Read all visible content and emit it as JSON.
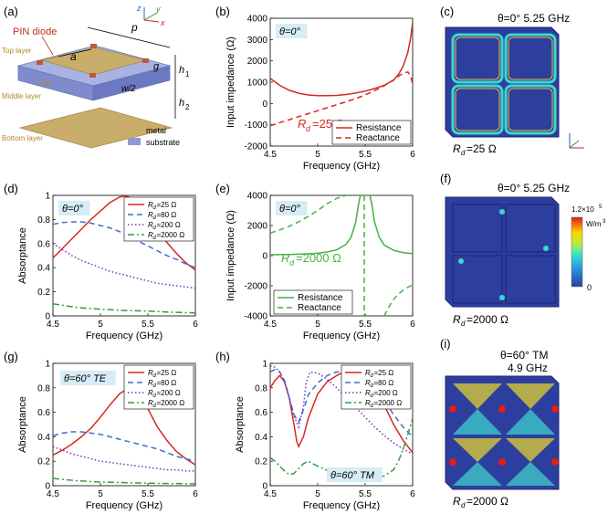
{
  "panels": {
    "a": {
      "label": "(a)",
      "texts": {
        "diode": "PIN diode",
        "top": "Top layer",
        "middle": "Middle layer",
        "bottom": "Bottom layer",
        "via": "Via",
        "p": "p",
        "a": "a",
        "g": "g",
        "h1": "h",
        "h1sub": "1",
        "h2": "h",
        "h2sub": "2",
        "w2": "w/2",
        "metal": "metal",
        "substrate": "substrate",
        "z": "z",
        "y": "y",
        "x": "x"
      }
    },
    "c": {
      "label": "(c)",
      "header": "θ=0° 5.25 GHz",
      "rd_label": "R",
      "rd_value": "=25 Ω"
    },
    "f": {
      "label": "(f)",
      "header": "θ=0° 5.25 GHz",
      "rd_label": "R",
      "rd_value": "=2000 Ω",
      "colorbar": {
        "max": "1.2×10",
        "max_exp": "5",
        "unit": "W/m",
        "unit_exp": "3",
        "min": "0"
      }
    },
    "i": {
      "label": "(i)",
      "header1": "θ=60° TM",
      "header2": "4.9 GHz",
      "rd_label": "R",
      "rd_value": "=2000 Ω"
    }
  },
  "colors": {
    "red": "#d62a1f",
    "blue": "#3a6fd1",
    "purple": "#7b2fb5",
    "green": "#2e9e3c",
    "green_e": "#44b144",
    "metal": "#c9ad6a",
    "substrate": "#8f9ad3",
    "tag_bg": "#d6ecf7",
    "field_bg": "#2c3f9e"
  },
  "chart_data": [
    {
      "id": "b",
      "label": "(b)",
      "type": "line",
      "title": "",
      "tag": "θ=0°",
      "annotation": "R",
      "annotation_sub": "d",
      "annotation_rest": "=25 Ω",
      "xlabel": "Frequency (GHz)",
      "ylabel": "Input impedance (Ω)",
      "xlim": [
        4.5,
        6
      ],
      "ylim": [
        -2000,
        4000
      ],
      "xticks": [
        "4.5",
        "5",
        "5.5",
        "6"
      ],
      "yticks": [
        "-2000",
        "-1000",
        "0",
        "1000",
        "2000",
        "3000",
        "4000"
      ],
      "legend": [
        "Resistance",
        "Reactance"
      ],
      "legend_position": "bottom-right",
      "series": [
        {
          "name": "Resistance",
          "style": "solid",
          "color": "red",
          "x": [
            4.5,
            4.6,
            4.7,
            4.8,
            4.9,
            5.0,
            5.1,
            5.2,
            5.3,
            5.4,
            5.5,
            5.6,
            5.7,
            5.8,
            5.85,
            5.9,
            5.95,
            5.98,
            6.0
          ],
          "y": [
            1180,
            850,
            620,
            480,
            400,
            370,
            365,
            380,
            420,
            490,
            580,
            700,
            850,
            1100,
            1350,
            1750,
            2400,
            3100,
            3800
          ]
        },
        {
          "name": "Reactance",
          "style": "dashed",
          "color": "red",
          "x": [
            4.5,
            4.6,
            4.7,
            4.8,
            4.9,
            5.0,
            5.1,
            5.2,
            5.3,
            5.4,
            5.5,
            5.6,
            5.7,
            5.8,
            5.85,
            5.9,
            5.95,
            5.98,
            6.0
          ],
          "y": [
            -1050,
            -900,
            -760,
            -620,
            -480,
            -340,
            -200,
            -60,
            80,
            230,
            400,
            600,
            830,
            1100,
            1280,
            1420,
            1480,
            1300,
            900
          ]
        }
      ]
    },
    {
      "id": "d",
      "label": "(d)",
      "type": "line",
      "title": "",
      "tag": "θ=0°",
      "xlabel": "Frequency (GHz)",
      "ylabel": "Absorptance",
      "xlim": [
        4.5,
        6
      ],
      "ylim": [
        0,
        1
      ],
      "xticks": [
        "4.5",
        "5",
        "5.5",
        "6"
      ],
      "yticks": [
        "0",
        "0.2",
        "0.4",
        "0.6",
        "0.8",
        "1"
      ],
      "legend": [
        "=25 Ω",
        "=80 Ω",
        "=200 Ω",
        "=2000 Ω"
      ],
      "legend_position": "top-right",
      "series": [
        {
          "name": "=25 Ω",
          "style": "solid",
          "color": "red",
          "x": [
            4.5,
            4.6,
            4.7,
            4.8,
            4.9,
            5.0,
            5.1,
            5.2,
            5.25,
            5.3,
            5.4,
            5.5,
            5.6,
            5.7,
            5.8,
            5.9,
            6.0
          ],
          "y": [
            0.48,
            0.56,
            0.64,
            0.72,
            0.8,
            0.87,
            0.94,
            0.985,
            0.995,
            0.985,
            0.93,
            0.83,
            0.72,
            0.61,
            0.52,
            0.44,
            0.38
          ]
        },
        {
          "name": "=80 Ω",
          "style": "dashed",
          "color": "blue",
          "x": [
            4.5,
            4.6,
            4.7,
            4.8,
            4.9,
            5.0,
            5.1,
            5.2,
            5.3,
            5.4,
            5.5,
            5.6,
            5.7,
            5.8,
            5.9,
            6.0
          ],
          "y": [
            0.76,
            0.775,
            0.78,
            0.78,
            0.77,
            0.75,
            0.73,
            0.7,
            0.66,
            0.62,
            0.58,
            0.54,
            0.5,
            0.47,
            0.43,
            0.4
          ]
        },
        {
          "name": "=200 Ω",
          "style": "dotted",
          "color": "purple",
          "x": [
            4.5,
            4.6,
            4.7,
            4.8,
            4.9,
            5.0,
            5.1,
            5.2,
            5.3,
            5.4,
            5.5,
            5.6,
            5.7,
            5.8,
            5.9,
            6.0
          ],
          "y": [
            0.6,
            0.55,
            0.5,
            0.46,
            0.43,
            0.4,
            0.37,
            0.35,
            0.33,
            0.31,
            0.29,
            0.27,
            0.26,
            0.25,
            0.24,
            0.23
          ]
        },
        {
          "name": "=2000 Ω",
          "style": "dashdot",
          "color": "green",
          "x": [
            4.5,
            4.75,
            5.0,
            5.25,
            5.5,
            5.75,
            6.0
          ],
          "y": [
            0.1,
            0.07,
            0.055,
            0.045,
            0.04,
            0.03,
            0.025
          ]
        }
      ]
    },
    {
      "id": "e",
      "label": "(e)",
      "type": "line",
      "title": "",
      "tag": "θ=0°",
      "annotation": "R",
      "annotation_sub": "d",
      "annotation_rest": "=2000 Ω",
      "xlabel": "Frequency (GHz)",
      "ylabel": "Input impedance (Ω)",
      "xlim": [
        4.5,
        6
      ],
      "ylim": [
        -4000,
        4000
      ],
      "xticks": [
        "4.5",
        "5",
        "5.5",
        "6"
      ],
      "yticks": [
        "-4000",
        "-2000",
        "0",
        "2000",
        "4000"
      ],
      "legend": [
        "Resistance",
        "Reactance"
      ],
      "legend_position": "bottom-left",
      "series": [
        {
          "name": "Resistance",
          "style": "solid",
          "color": "green_e",
          "x": [
            4.5,
            4.7,
            4.9,
            5.0,
            5.1,
            5.2,
            5.3,
            5.35,
            5.4,
            5.43,
            5.45,
            5.47,
            5.49,
            5.5,
            5.51,
            5.53,
            5.55,
            5.57,
            5.6,
            5.65,
            5.7,
            5.8,
            5.9,
            6.0
          ],
          "y": [
            60,
            80,
            120,
            160,
            240,
            380,
            750,
            1200,
            2200,
            3400,
            4000,
            4000,
            4000,
            4000,
            4000,
            4000,
            4000,
            3400,
            2200,
            1200,
            700,
            350,
            200,
            130
          ]
        },
        {
          "name": "Reactance",
          "style": "dashed",
          "color": "green_e",
          "segments": [
            {
              "x": [
                4.5,
                4.6,
                4.7,
                4.8,
                4.9,
                5.0,
                5.1,
                5.2,
                5.3,
                5.35,
                5.38
              ],
              "y": [
                1500,
                1700,
                1950,
                2250,
                2600,
                3000,
                3450,
                3800,
                4000,
                4000,
                4000
              ]
            },
            {
              "x": [
                5.49,
                5.49
              ],
              "y": [
                4000,
                -4000
              ]
            },
            {
              "x": [
                5.7,
                5.75,
                5.8,
                5.85,
                5.9,
                5.95,
                6.0
              ],
              "y": [
                -4000,
                -3400,
                -2900,
                -2550,
                -2300,
                -2100,
                -1950
              ]
            }
          ]
        }
      ]
    },
    {
      "id": "g",
      "label": "(g)",
      "type": "line",
      "title": "",
      "tag": "θ=60° TE",
      "xlabel": "Frequency (GHz)",
      "ylabel": "Absorptance",
      "xlim": [
        4.5,
        6
      ],
      "ylim": [
        0,
        1
      ],
      "xticks": [
        "4.5",
        "5",
        "5.5",
        "6"
      ],
      "yticks": [
        "0",
        "0.2",
        "0.4",
        "0.6",
        "0.8",
        "1"
      ],
      "legend": [
        "=25 Ω",
        "=80 Ω",
        "=200 Ω",
        "=2000 Ω"
      ],
      "legend_position": "top-right",
      "series": [
        {
          "name": "=25 Ω",
          "style": "solid",
          "color": "red",
          "x": [
            4.5,
            4.6,
            4.7,
            4.8,
            4.9,
            5.0,
            5.1,
            5.2,
            5.3,
            5.4,
            5.5,
            5.6,
            5.7,
            5.8,
            5.9,
            6.0
          ],
          "y": [
            0.25,
            0.29,
            0.34,
            0.4,
            0.47,
            0.56,
            0.66,
            0.75,
            0.8,
            0.76,
            0.63,
            0.48,
            0.37,
            0.28,
            0.22,
            0.17
          ]
        },
        {
          "name": "=80 Ω",
          "style": "dashed",
          "color": "blue",
          "x": [
            4.5,
            4.6,
            4.7,
            4.8,
            4.9,
            5.0,
            5.1,
            5.2,
            5.3,
            5.4,
            5.5,
            5.6,
            5.7,
            5.8,
            5.9,
            6.0
          ],
          "y": [
            0.41,
            0.43,
            0.44,
            0.44,
            0.43,
            0.42,
            0.4,
            0.38,
            0.36,
            0.34,
            0.32,
            0.3,
            0.27,
            0.24,
            0.22,
            0.2
          ]
        },
        {
          "name": "=200 Ω",
          "style": "dotted",
          "color": "purple",
          "x": [
            4.5,
            4.6,
            4.7,
            4.8,
            4.9,
            5.0,
            5.1,
            5.2,
            5.3,
            5.4,
            5.5,
            5.6,
            5.7,
            5.8,
            5.9,
            6.0
          ],
          "y": [
            0.32,
            0.29,
            0.26,
            0.24,
            0.22,
            0.2,
            0.19,
            0.18,
            0.17,
            0.16,
            0.15,
            0.14,
            0.13,
            0.13,
            0.12,
            0.12
          ]
        },
        {
          "name": "=2000 Ω",
          "style": "dashdot",
          "color": "green",
          "x": [
            4.5,
            4.75,
            5.0,
            5.25,
            5.5,
            5.75,
            6.0
          ],
          "y": [
            0.06,
            0.04,
            0.03,
            0.025,
            0.02,
            0.018,
            0.015
          ]
        }
      ]
    },
    {
      "id": "h",
      "label": "(h)",
      "type": "line",
      "title": "",
      "tag": "θ=60° TM",
      "xlabel": "Frequency (GHz)",
      "ylabel": "Absorptance",
      "xlim": [
        4.5,
        6
      ],
      "ylim": [
        0,
        1
      ],
      "xticks": [
        "4.5",
        "5",
        "5.5",
        "6"
      ],
      "yticks": [
        "0",
        "0.2",
        "0.4",
        "0.6",
        "0.8",
        "1"
      ],
      "legend": [
        "=25 Ω",
        "=80 Ω",
        "=200 Ω",
        "=2000 Ω"
      ],
      "legend_position": "top-right",
      "series": [
        {
          "name": "=25 Ω",
          "style": "solid",
          "color": "red",
          "x": [
            4.5,
            4.55,
            4.6,
            4.65,
            4.7,
            4.75,
            4.78,
            4.8,
            4.85,
            4.9,
            5.0,
            5.1,
            5.2,
            5.3,
            5.4,
            5.45,
            5.5,
            5.6,
            5.7,
            5.8,
            5.9,
            6.0
          ],
          "y": [
            0.8,
            0.86,
            0.9,
            0.85,
            0.72,
            0.5,
            0.36,
            0.32,
            0.4,
            0.55,
            0.75,
            0.85,
            0.9,
            0.94,
            0.98,
            0.97,
            0.93,
            0.82,
            0.66,
            0.5,
            0.37,
            0.27
          ]
        },
        {
          "name": "=80 Ω",
          "style": "dashed",
          "color": "blue",
          "x": [
            4.5,
            4.55,
            4.6,
            4.65,
            4.7,
            4.75,
            4.8,
            4.85,
            4.9,
            5.0,
            5.1,
            5.2,
            5.3,
            5.4,
            5.5,
            5.6,
            5.7,
            5.8,
            5.9,
            6.0
          ],
          "y": [
            0.93,
            0.95,
            0.93,
            0.86,
            0.72,
            0.58,
            0.52,
            0.62,
            0.74,
            0.84,
            0.9,
            0.93,
            0.93,
            0.92,
            0.88,
            0.8,
            0.7,
            0.58,
            0.48,
            0.4
          ]
        },
        {
          "name": "=200 Ω",
          "style": "dotted",
          "color": "purple",
          "x": [
            4.5,
            4.55,
            4.6,
            4.65,
            4.7,
            4.75,
            4.8,
            4.85,
            4.88,
            4.92,
            5.0,
            5.1,
            5.2,
            5.3,
            5.4,
            5.5,
            5.6,
            5.7,
            5.8,
            5.9,
            6.0
          ],
          "y": [
            0.98,
            0.97,
            0.93,
            0.85,
            0.72,
            0.57,
            0.48,
            0.65,
            0.85,
            0.93,
            0.92,
            0.87,
            0.8,
            0.72,
            0.64,
            0.56,
            0.48,
            0.41,
            0.35,
            0.3,
            0.26
          ]
        },
        {
          "name": "=2000 Ω",
          "style": "dashdot",
          "color": "green",
          "x": [
            4.5,
            4.55,
            4.6,
            4.65,
            4.7,
            4.75,
            4.8,
            4.85,
            4.9,
            5.0,
            5.2,
            5.4,
            5.6,
            5.7,
            5.8,
            5.85,
            5.9,
            5.95,
            6.0
          ],
          "y": [
            0.23,
            0.2,
            0.16,
            0.12,
            0.09,
            0.1,
            0.14,
            0.18,
            0.2,
            0.16,
            0.09,
            0.06,
            0.06,
            0.08,
            0.13,
            0.2,
            0.3,
            0.42,
            0.55
          ]
        }
      ]
    }
  ]
}
